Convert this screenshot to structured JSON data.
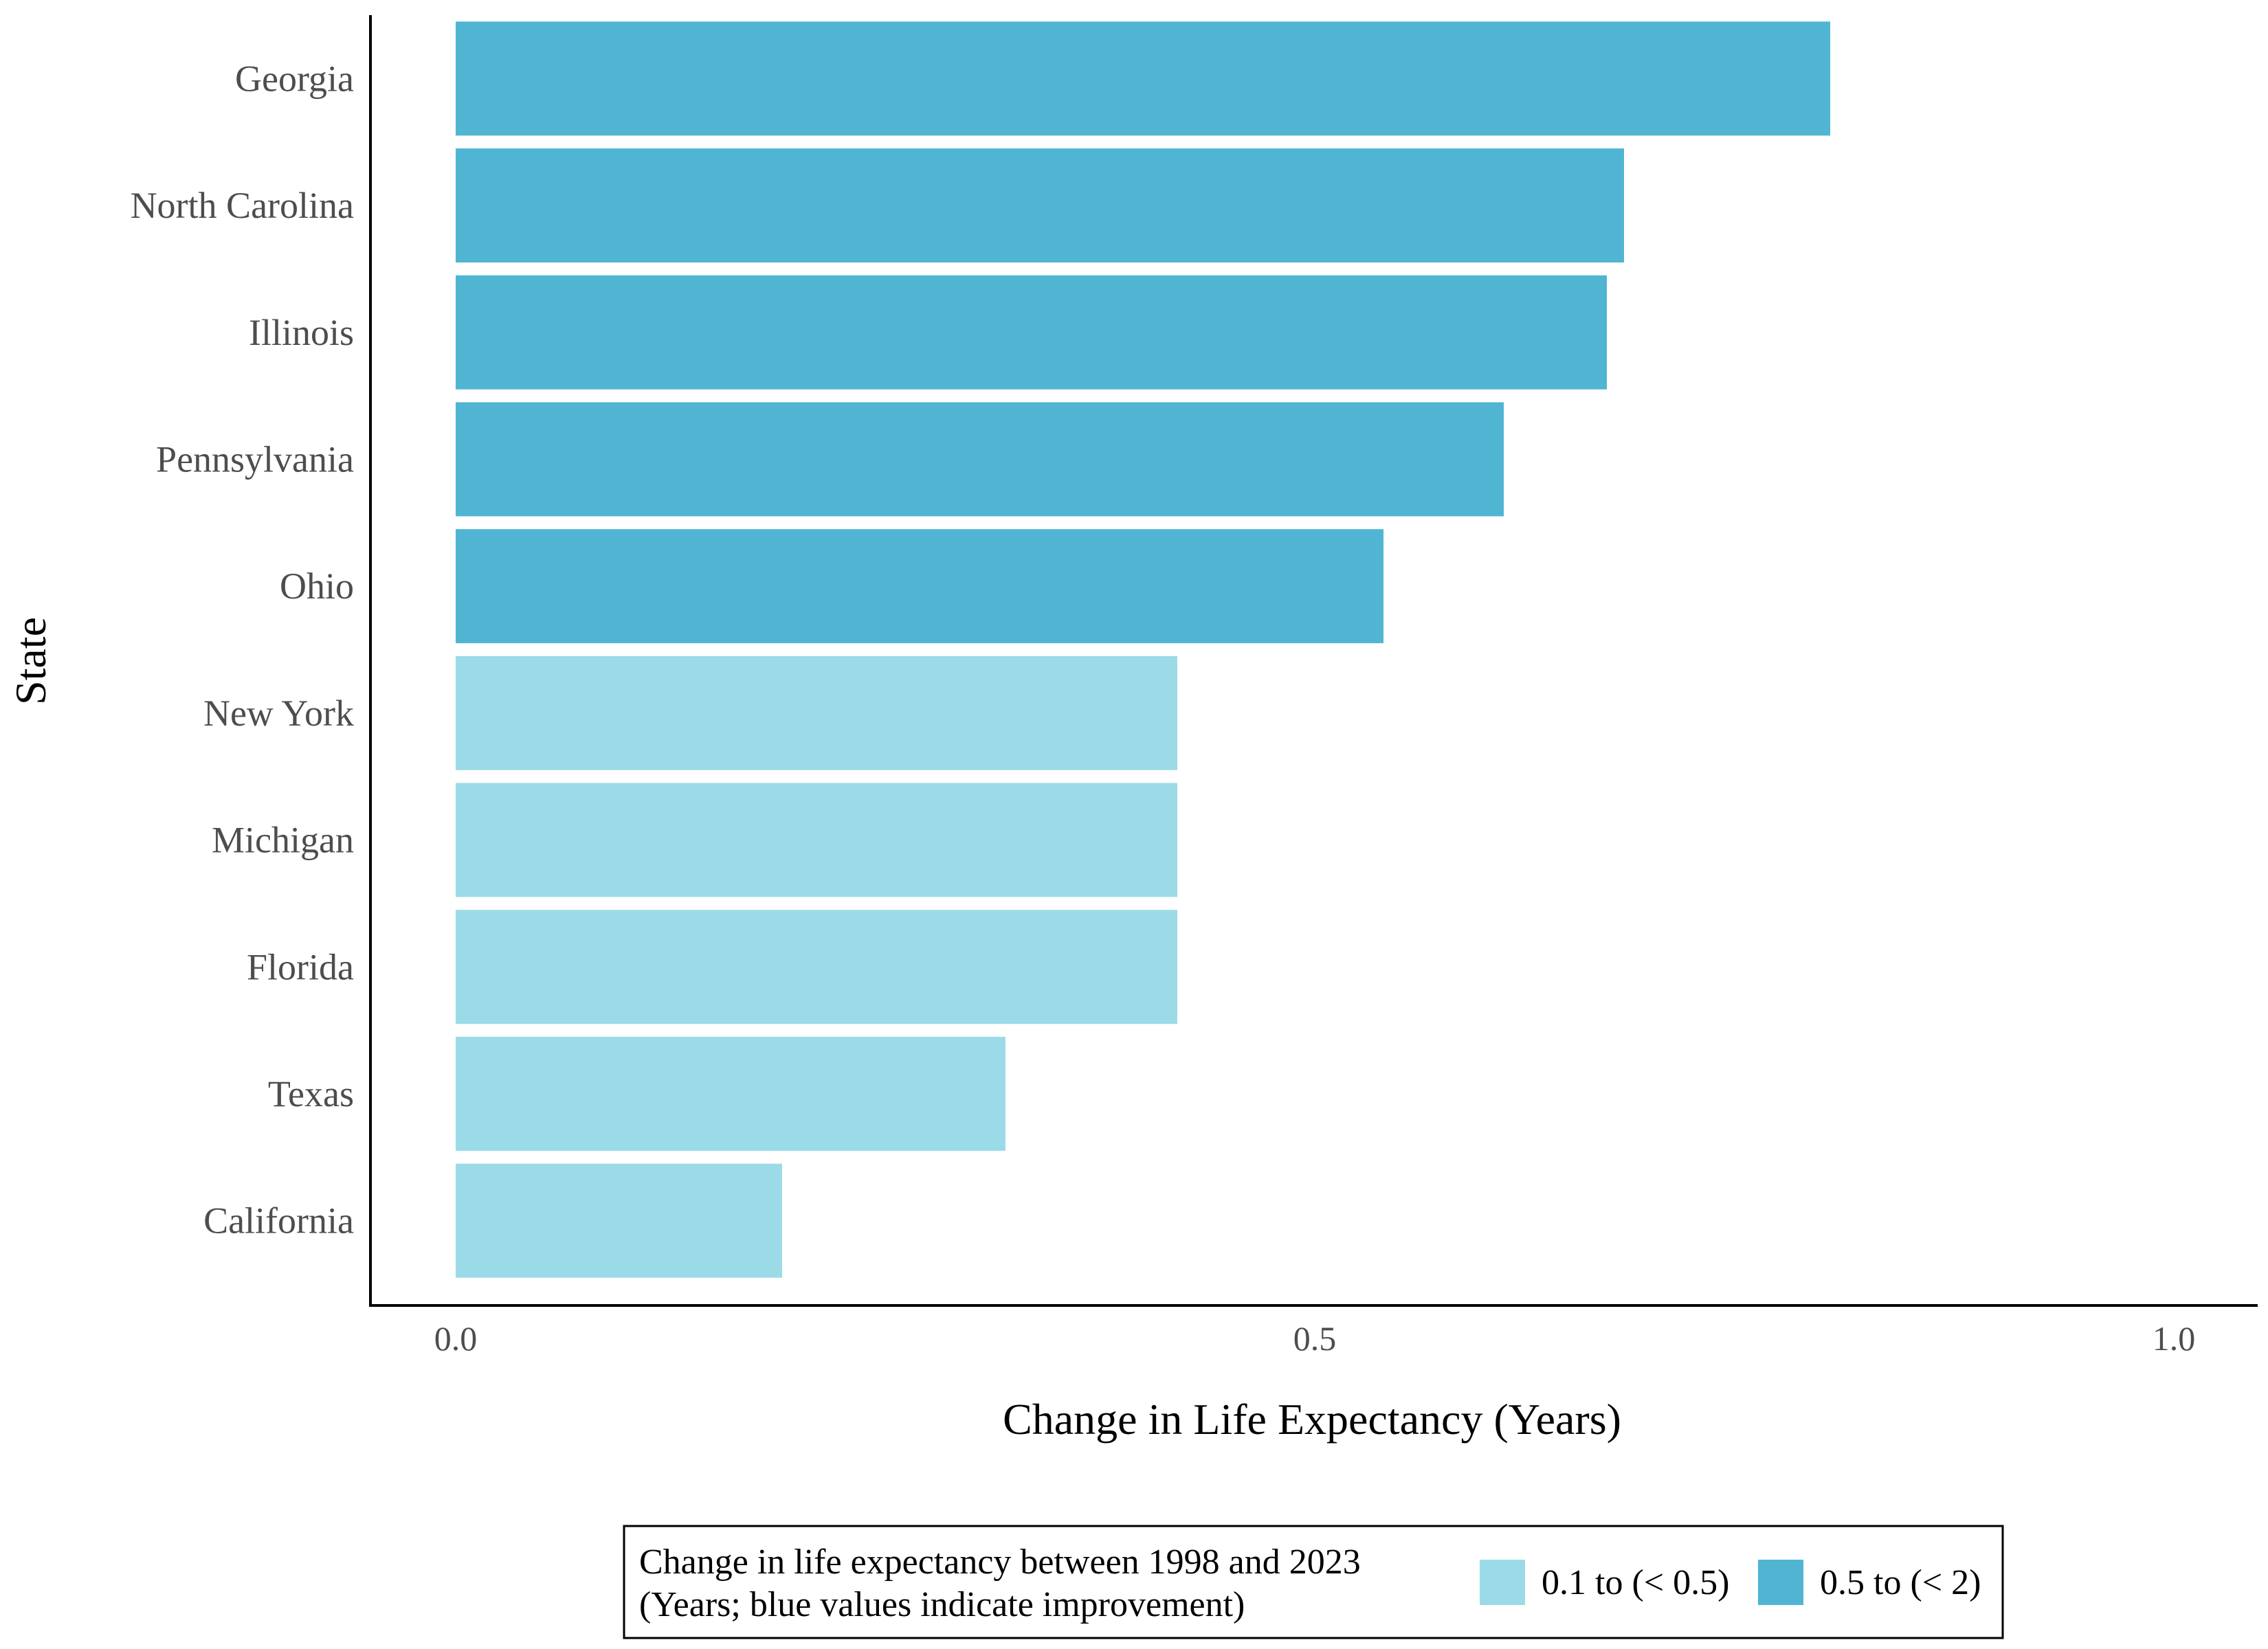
{
  "chart_data": {
    "type": "bar",
    "orientation": "horizontal",
    "categories": [
      "Georgia",
      "North Carolina",
      "Illinois",
      "Pennsylvania",
      "Ohio",
      "New York",
      "Michigan",
      "Florida",
      "Texas",
      "California"
    ],
    "values": [
      0.8,
      0.68,
      0.67,
      0.61,
      0.54,
      0.42,
      0.42,
      0.42,
      0.32,
      0.19
    ],
    "bin": [
      "0.5 to (< 2)",
      "0.5 to (< 2)",
      "0.5 to (< 2)",
      "0.5 to (< 2)",
      "0.5 to (< 2)",
      "0.1 to (< 0.5)",
      "0.1 to (< 0.5)",
      "0.1 to (< 0.5)",
      "0.1 to (< 0.5)",
      "0.1 to (< 0.5)"
    ],
    "xlabel": "Change in Life Expectancy (Years)",
    "ylabel": "State",
    "xlim": [
      -0.05,
      1.05
    ],
    "xticks": [
      0.0,
      0.5,
      1.0
    ],
    "xtick_labels": [
      "0.0",
      "0.5",
      "1.0"
    ],
    "grid": false,
    "legend": {
      "position": "bottom",
      "title_lines": [
        "Change in life expectancy between 1998 and 2023",
        "(Years; blue values indicate improvement)"
      ],
      "entries": [
        {
          "label": "0.1 to (< 0.5)",
          "color": "#9bdbe8"
        },
        {
          "label": "0.5 to (< 2)",
          "color": "#50b5d3"
        }
      ]
    }
  }
}
